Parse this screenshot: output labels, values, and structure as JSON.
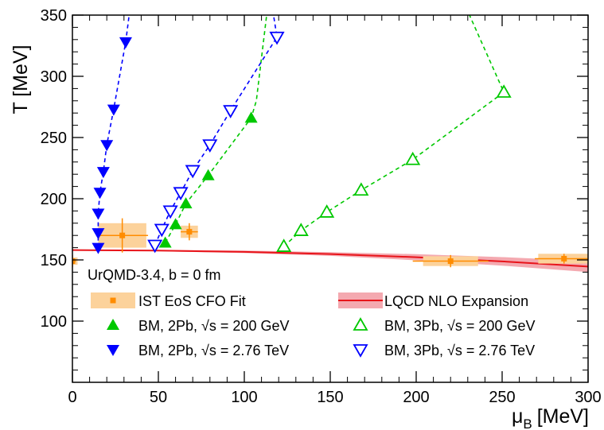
{
  "chart_data": {
    "type": "scatter",
    "title": "",
    "xlabel": "μ_B [MeV]",
    "xlabel_main": "μ",
    "xlabel_sub": "B",
    "xlabel_unit": "[MeV]",
    "ylabel": "T [MeV]",
    "xlim": [
      0,
      300
    ],
    "ylim": [
      50,
      350
    ],
    "xticks": [
      0,
      50,
      100,
      150,
      200,
      250,
      300
    ],
    "yticks": [
      100,
      150,
      200,
      250,
      300,
      350
    ],
    "grid": false,
    "legend_position": "bottom",
    "annotation": "UrQMD-3.4, b = 0 fm",
    "series": [
      {
        "name": "IST EoS CFO Fit",
        "marker": "square",
        "color": "#ff8c00",
        "band_color": "#fcd29b",
        "points": [
          {
            "x": 0,
            "y": 149,
            "xerr": 2,
            "yerr": 5,
            "xsys": 3,
            "ysys": 3
          },
          {
            "x": 29,
            "y": 170,
            "xerr": 15,
            "yerr": 14,
            "xsys": 14,
            "ysys": 10
          },
          {
            "x": 68,
            "y": 173,
            "xerr": 5,
            "yerr": 7,
            "xsys": 5,
            "ysys": 5
          },
          {
            "x": 220,
            "y": 149,
            "xerr": 22,
            "yerr": 5,
            "xsys": 16,
            "ysys": 4
          },
          {
            "x": 286,
            "y": 151,
            "xerr": 17,
            "yerr": 4,
            "xsys": 15,
            "ysys": 4
          }
        ]
      },
      {
        "name": "LQCD NLO Expansion",
        "type": "band",
        "color": "#e8141a",
        "band_color": "#f4a9b0",
        "x": [
          0,
          50,
          100,
          150,
          200,
          250,
          300
        ],
        "y": [
          158.0,
          157.6,
          156.6,
          154.8,
          152.2,
          148.8,
          144.6
        ],
        "band": [
          0,
          0.5,
          1,
          1.5,
          2.5,
          3.5,
          4.5
        ]
      },
      {
        "name": "BM, 2Pb, √s = 200 GeV",
        "marker": "triangle-up-filled",
        "color": "#00c800",
        "x": [
          54,
          60,
          66,
          79,
          104,
          107,
          113
        ],
        "y": [
          164,
          179,
          196,
          219,
          266,
          280,
          350
        ],
        "marked": [
          true,
          true,
          true,
          true,
          true,
          false,
          false
        ]
      },
      {
        "name": "BM, 3Pb, √s = 200 GeV",
        "marker": "triangle-up-open",
        "color": "#00c800",
        "x": [
          123,
          133,
          148,
          168,
          198,
          251,
          231
        ],
        "y": [
          161,
          174,
          189,
          207,
          232,
          287,
          350
        ],
        "marked": [
          true,
          true,
          true,
          true,
          true,
          true,
          false
        ]
      },
      {
        "name": "BM, 2Pb, √s = 2.76 TeV",
        "marker": "triangle-down-filled",
        "color": "#0000ff",
        "x": [
          15,
          15,
          15,
          16,
          18,
          20,
          24,
          31,
          33
        ],
        "y": [
          160,
          172,
          188,
          205,
          222,
          244,
          273,
          328,
          350
        ],
        "marked": [
          true,
          true,
          true,
          true,
          true,
          true,
          true,
          true,
          false
        ]
      },
      {
        "name": "BM, 3Pb, √s = 2.76 TeV",
        "marker": "triangle-down-open",
        "color": "#0000ff",
        "x": [
          48,
          52,
          57,
          63,
          70,
          80,
          92,
          119,
          117
        ],
        "y": [
          162,
          175,
          190,
          205,
          223,
          244,
          272,
          332,
          350
        ],
        "marked": [
          true,
          true,
          true,
          true,
          true,
          true,
          true,
          true,
          false
        ]
      }
    ],
    "legend": [
      {
        "label": "IST EoS CFO Fit",
        "series": 0
      },
      {
        "label": "LQCD NLO Expansion",
        "series": 1
      },
      {
        "label": "BM, 2Pb, √s = 200 GeV",
        "series": 2
      },
      {
        "label": "BM, 3Pb, √s = 200 GeV",
        "series": 3
      },
      {
        "label": "BM, 2Pb, √s = 2.76 TeV",
        "series": 4
      },
      {
        "label": "BM, 3Pb, √s = 2.76 TeV",
        "series": 5
      }
    ]
  }
}
